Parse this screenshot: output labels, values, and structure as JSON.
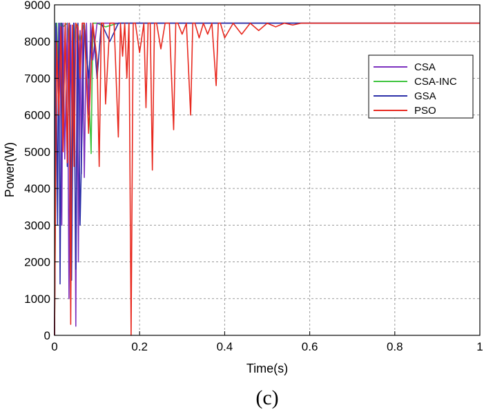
{
  "chart_data": {
    "type": "line",
    "title": "",
    "xlabel": "Time(s)",
    "ylabel": "Power(W)",
    "caption": "(c)",
    "xlim": [
      0,
      1
    ],
    "ylim": [
      0,
      9000
    ],
    "xticks": [
      "0",
      "0.2",
      "0.4",
      "0.6",
      "0.8",
      "1"
    ],
    "yticks": [
      "0",
      "1000",
      "2000",
      "3000",
      "4000",
      "5000",
      "6000",
      "7000",
      "8000",
      "9000"
    ],
    "grid": true,
    "legend_position": "top-right",
    "series": [
      {
        "name": "CSA",
        "color": "#7b2fbe",
        "x": [
          0,
          0.004,
          0.01,
          0.013,
          0.017,
          0.02,
          0.024,
          0.03,
          0.034,
          0.038,
          0.042,
          0.046,
          0.05,
          0.053,
          0.056,
          0.06,
          0.063,
          0.066,
          0.07,
          0.075,
          0.08,
          0.085,
          0.09,
          0.1,
          0.12,
          0.2,
          1.0
        ],
        "values": [
          0,
          8400,
          6000,
          8500,
          3000,
          8500,
          4800,
          8500,
          1000,
          8450,
          5000,
          8500,
          250,
          8400,
          2000,
          8300,
          4400,
          8500,
          4300,
          8500,
          6000,
          8500,
          7500,
          8500,
          8500,
          8500,
          8500
        ]
      },
      {
        "name": "CSA-INC",
        "color": "#3ec43e",
        "x": [
          0,
          0.005,
          0.01,
          0.015,
          0.02,
          0.03,
          0.04,
          0.05,
          0.06,
          0.07,
          0.08,
          0.086,
          0.09,
          0.1,
          0.12,
          0.15,
          0.2,
          1.0
        ],
        "values": [
          0,
          8500,
          7000,
          8500,
          8400,
          8500,
          7000,
          8500,
          8000,
          8500,
          7000,
          4950,
          8500,
          8500,
          8400,
          8500,
          8500,
          8500
        ]
      },
      {
        "name": "GSA",
        "color": "#2b2fa8",
        "x": [
          0,
          0.003,
          0.007,
          0.01,
          0.013,
          0.017,
          0.02,
          0.025,
          0.03,
          0.035,
          0.04,
          0.045,
          0.05,
          0.055,
          0.06,
          0.07,
          0.08,
          0.09,
          0.1,
          0.11,
          0.13,
          0.15,
          0.2,
          0.3,
          0.5,
          1.0
        ],
        "values": [
          0,
          8500,
          3000,
          8500,
          1400,
          8500,
          5500,
          8500,
          4600,
          8500,
          1500,
          8500,
          1800,
          8500,
          3000,
          8500,
          7000,
          8500,
          7000,
          8500,
          8000,
          8500,
          8500,
          8500,
          8500,
          8500
        ]
      },
      {
        "name": "PSO",
        "color": "#e8281e",
        "x": [
          0,
          0.005,
          0.01,
          0.015,
          0.02,
          0.025,
          0.03,
          0.034,
          0.038,
          0.042,
          0.046,
          0.05,
          0.055,
          0.06,
          0.065,
          0.07,
          0.08,
          0.09,
          0.1,
          0.105,
          0.11,
          0.115,
          0.12,
          0.13,
          0.14,
          0.15,
          0.155,
          0.16,
          0.165,
          0.17,
          0.175,
          0.18,
          0.185,
          0.19,
          0.2,
          0.21,
          0.215,
          0.22,
          0.225,
          0.23,
          0.235,
          0.24,
          0.25,
          0.26,
          0.27,
          0.28,
          0.285,
          0.29,
          0.3,
          0.31,
          0.32,
          0.325,
          0.33,
          0.34,
          0.35,
          0.36,
          0.37,
          0.38,
          0.385,
          0.39,
          0.4,
          0.42,
          0.44,
          0.46,
          0.48,
          0.5,
          0.52,
          0.54,
          0.56,
          0.58,
          0.6,
          0.65,
          1.0
        ],
        "values": [
          0,
          8000,
          6000,
          8400,
          5000,
          8500,
          4700,
          8500,
          300,
          8450,
          4600,
          8500,
          8400,
          7000,
          8500,
          8500,
          5500,
          8500,
          7500,
          4600,
          8500,
          8500,
          6300,
          8500,
          8500,
          5400,
          8500,
          7600,
          8500,
          7000,
          8500,
          0,
          8500,
          8500,
          7700,
          8500,
          6200,
          8500,
          8500,
          4500,
          8500,
          8500,
          7800,
          8500,
          8500,
          5600,
          8500,
          8500,
          8200,
          8500,
          6000,
          8500,
          8500,
          8100,
          8500,
          8200,
          8500,
          6800,
          8500,
          8500,
          8100,
          8500,
          8200,
          8500,
          8300,
          8500,
          8400,
          8500,
          8450,
          8500,
          8500,
          8500,
          8500
        ]
      }
    ]
  }
}
